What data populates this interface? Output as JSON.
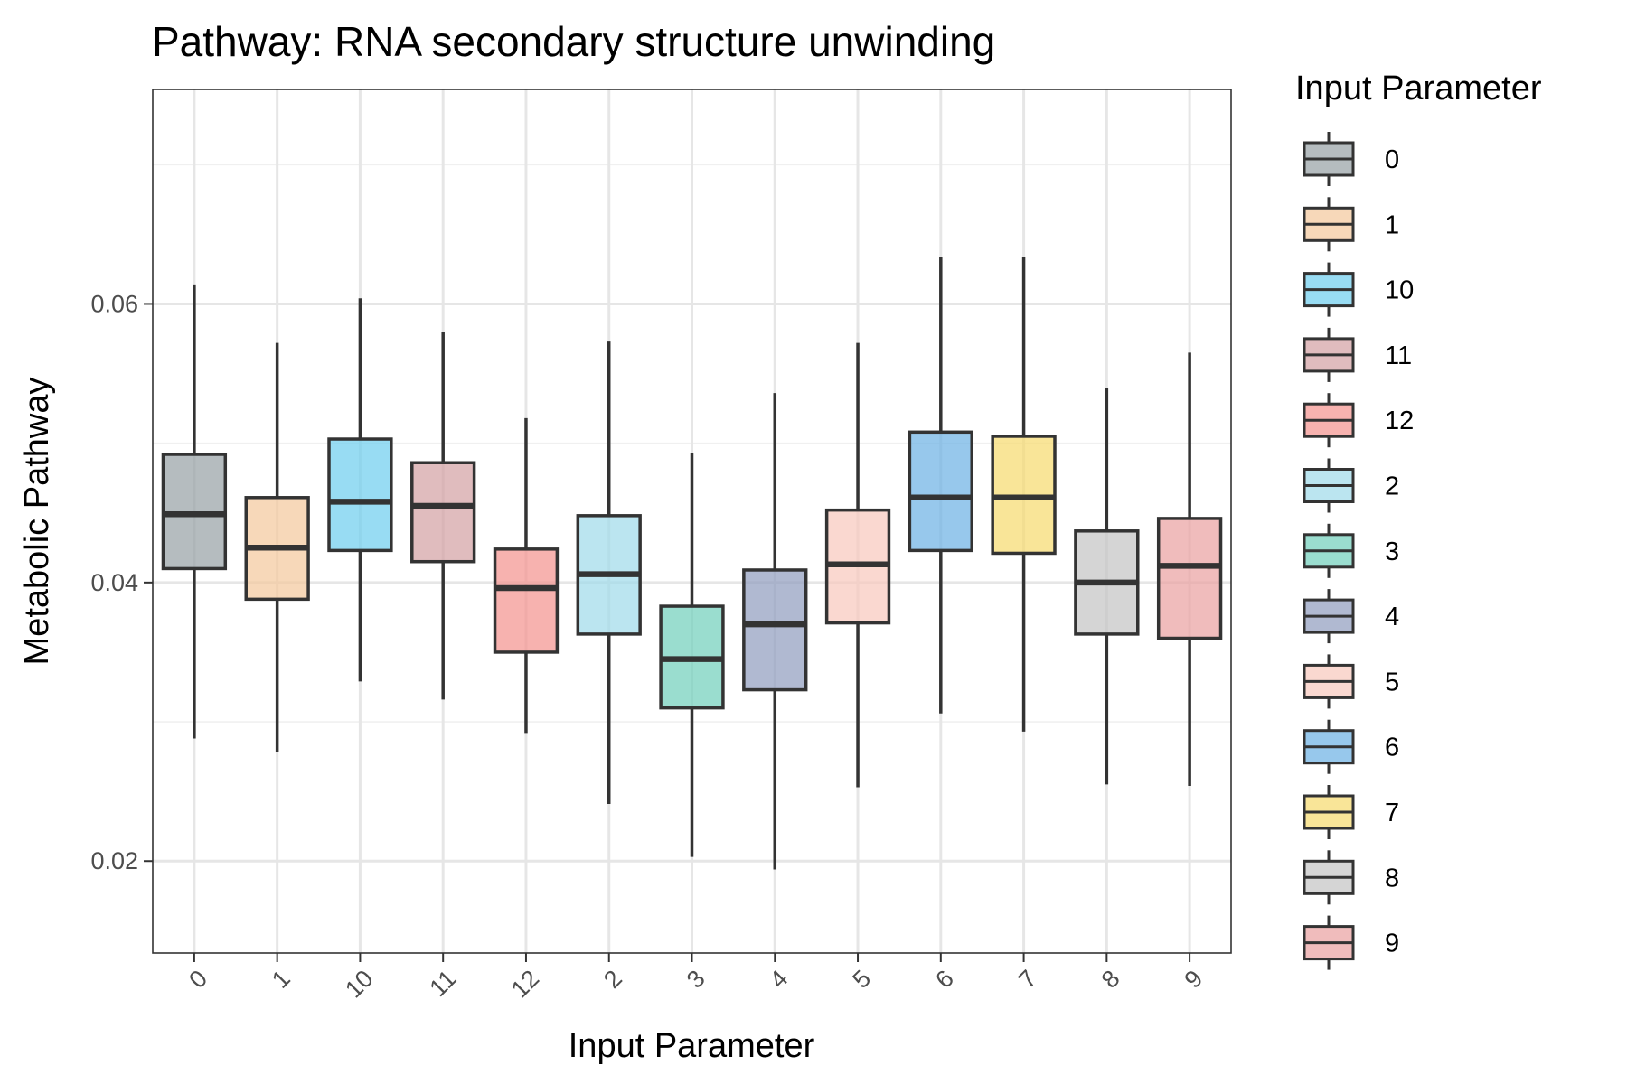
{
  "chart_data": {
    "type": "boxplot",
    "title": "Pathway: RNA secondary structure unwinding",
    "xlabel": "Input Parameter",
    "ylabel": "Metabolic Pathway",
    "ylim": [
      0.0134,
      0.0754
    ],
    "y_ticks": [
      0.02,
      0.04,
      0.06
    ],
    "y_tick_labels": [
      "0.02",
      "0.04",
      "0.06"
    ],
    "grid": true,
    "legend": {
      "title": "Input Parameter",
      "placement": "right"
    },
    "categories": [
      "0",
      "1",
      "10",
      "11",
      "12",
      "2",
      "3",
      "4",
      "5",
      "6",
      "7",
      "8",
      "9"
    ],
    "boxes": [
      {
        "name": "0",
        "min": 0.0288,
        "q1": 0.041,
        "median": 0.0449,
        "q3": 0.0492,
        "max": 0.0614,
        "color": "#959fa4"
      },
      {
        "name": "1",
        "min": 0.0278,
        "q1": 0.0388,
        "median": 0.0425,
        "q3": 0.0461,
        "max": 0.0572,
        "color": "#f3c79b"
      },
      {
        "name": "10",
        "min": 0.0329,
        "q1": 0.0423,
        "median": 0.0458,
        "q3": 0.0503,
        "max": 0.0604,
        "color": "#6ccdee"
      },
      {
        "name": "11",
        "min": 0.0316,
        "q1": 0.0415,
        "median": 0.0455,
        "q3": 0.0486,
        "max": 0.058,
        "color": "#d39fa3"
      },
      {
        "name": "12",
        "min": 0.0292,
        "q1": 0.035,
        "median": 0.0396,
        "q3": 0.0424,
        "max": 0.0518,
        "color": "#f3918d"
      },
      {
        "name": "2",
        "min": 0.0241,
        "q1": 0.0363,
        "median": 0.0406,
        "q3": 0.0448,
        "max": 0.0573,
        "color": "#9edaea"
      },
      {
        "name": "3",
        "min": 0.0203,
        "q1": 0.031,
        "median": 0.0345,
        "q3": 0.0383,
        "max": 0.0493,
        "color": "#6fcfbb"
      },
      {
        "name": "4",
        "min": 0.0194,
        "q1": 0.0323,
        "median": 0.037,
        "q3": 0.0409,
        "max": 0.0536,
        "color": "#8e9bbd"
      },
      {
        "name": "5",
        "min": 0.0253,
        "q1": 0.0371,
        "median": 0.0413,
        "q3": 0.0452,
        "max": 0.0572,
        "color": "#f8c7bc"
      },
      {
        "name": "6",
        "min": 0.0306,
        "q1": 0.0423,
        "median": 0.0461,
        "q3": 0.0508,
        "max": 0.0634,
        "color": "#6bb1e4"
      },
      {
        "name": "7",
        "min": 0.0293,
        "q1": 0.0421,
        "median": 0.0461,
        "q3": 0.0505,
        "max": 0.0634,
        "color": "#f6da6c"
      },
      {
        "name": "8",
        "min": 0.0255,
        "q1": 0.0363,
        "median": 0.04,
        "q3": 0.0437,
        "max": 0.054,
        "color": "#c3c3c3"
      },
      {
        "name": "9",
        "min": 0.0254,
        "q1": 0.036,
        "median": 0.0412,
        "q3": 0.0446,
        "max": 0.0565,
        "color": "#e9a0a0"
      }
    ],
    "legend_order": [
      "0",
      "1",
      "10",
      "11",
      "12",
      "2",
      "3",
      "4",
      "5",
      "6",
      "7",
      "8",
      "9"
    ]
  }
}
